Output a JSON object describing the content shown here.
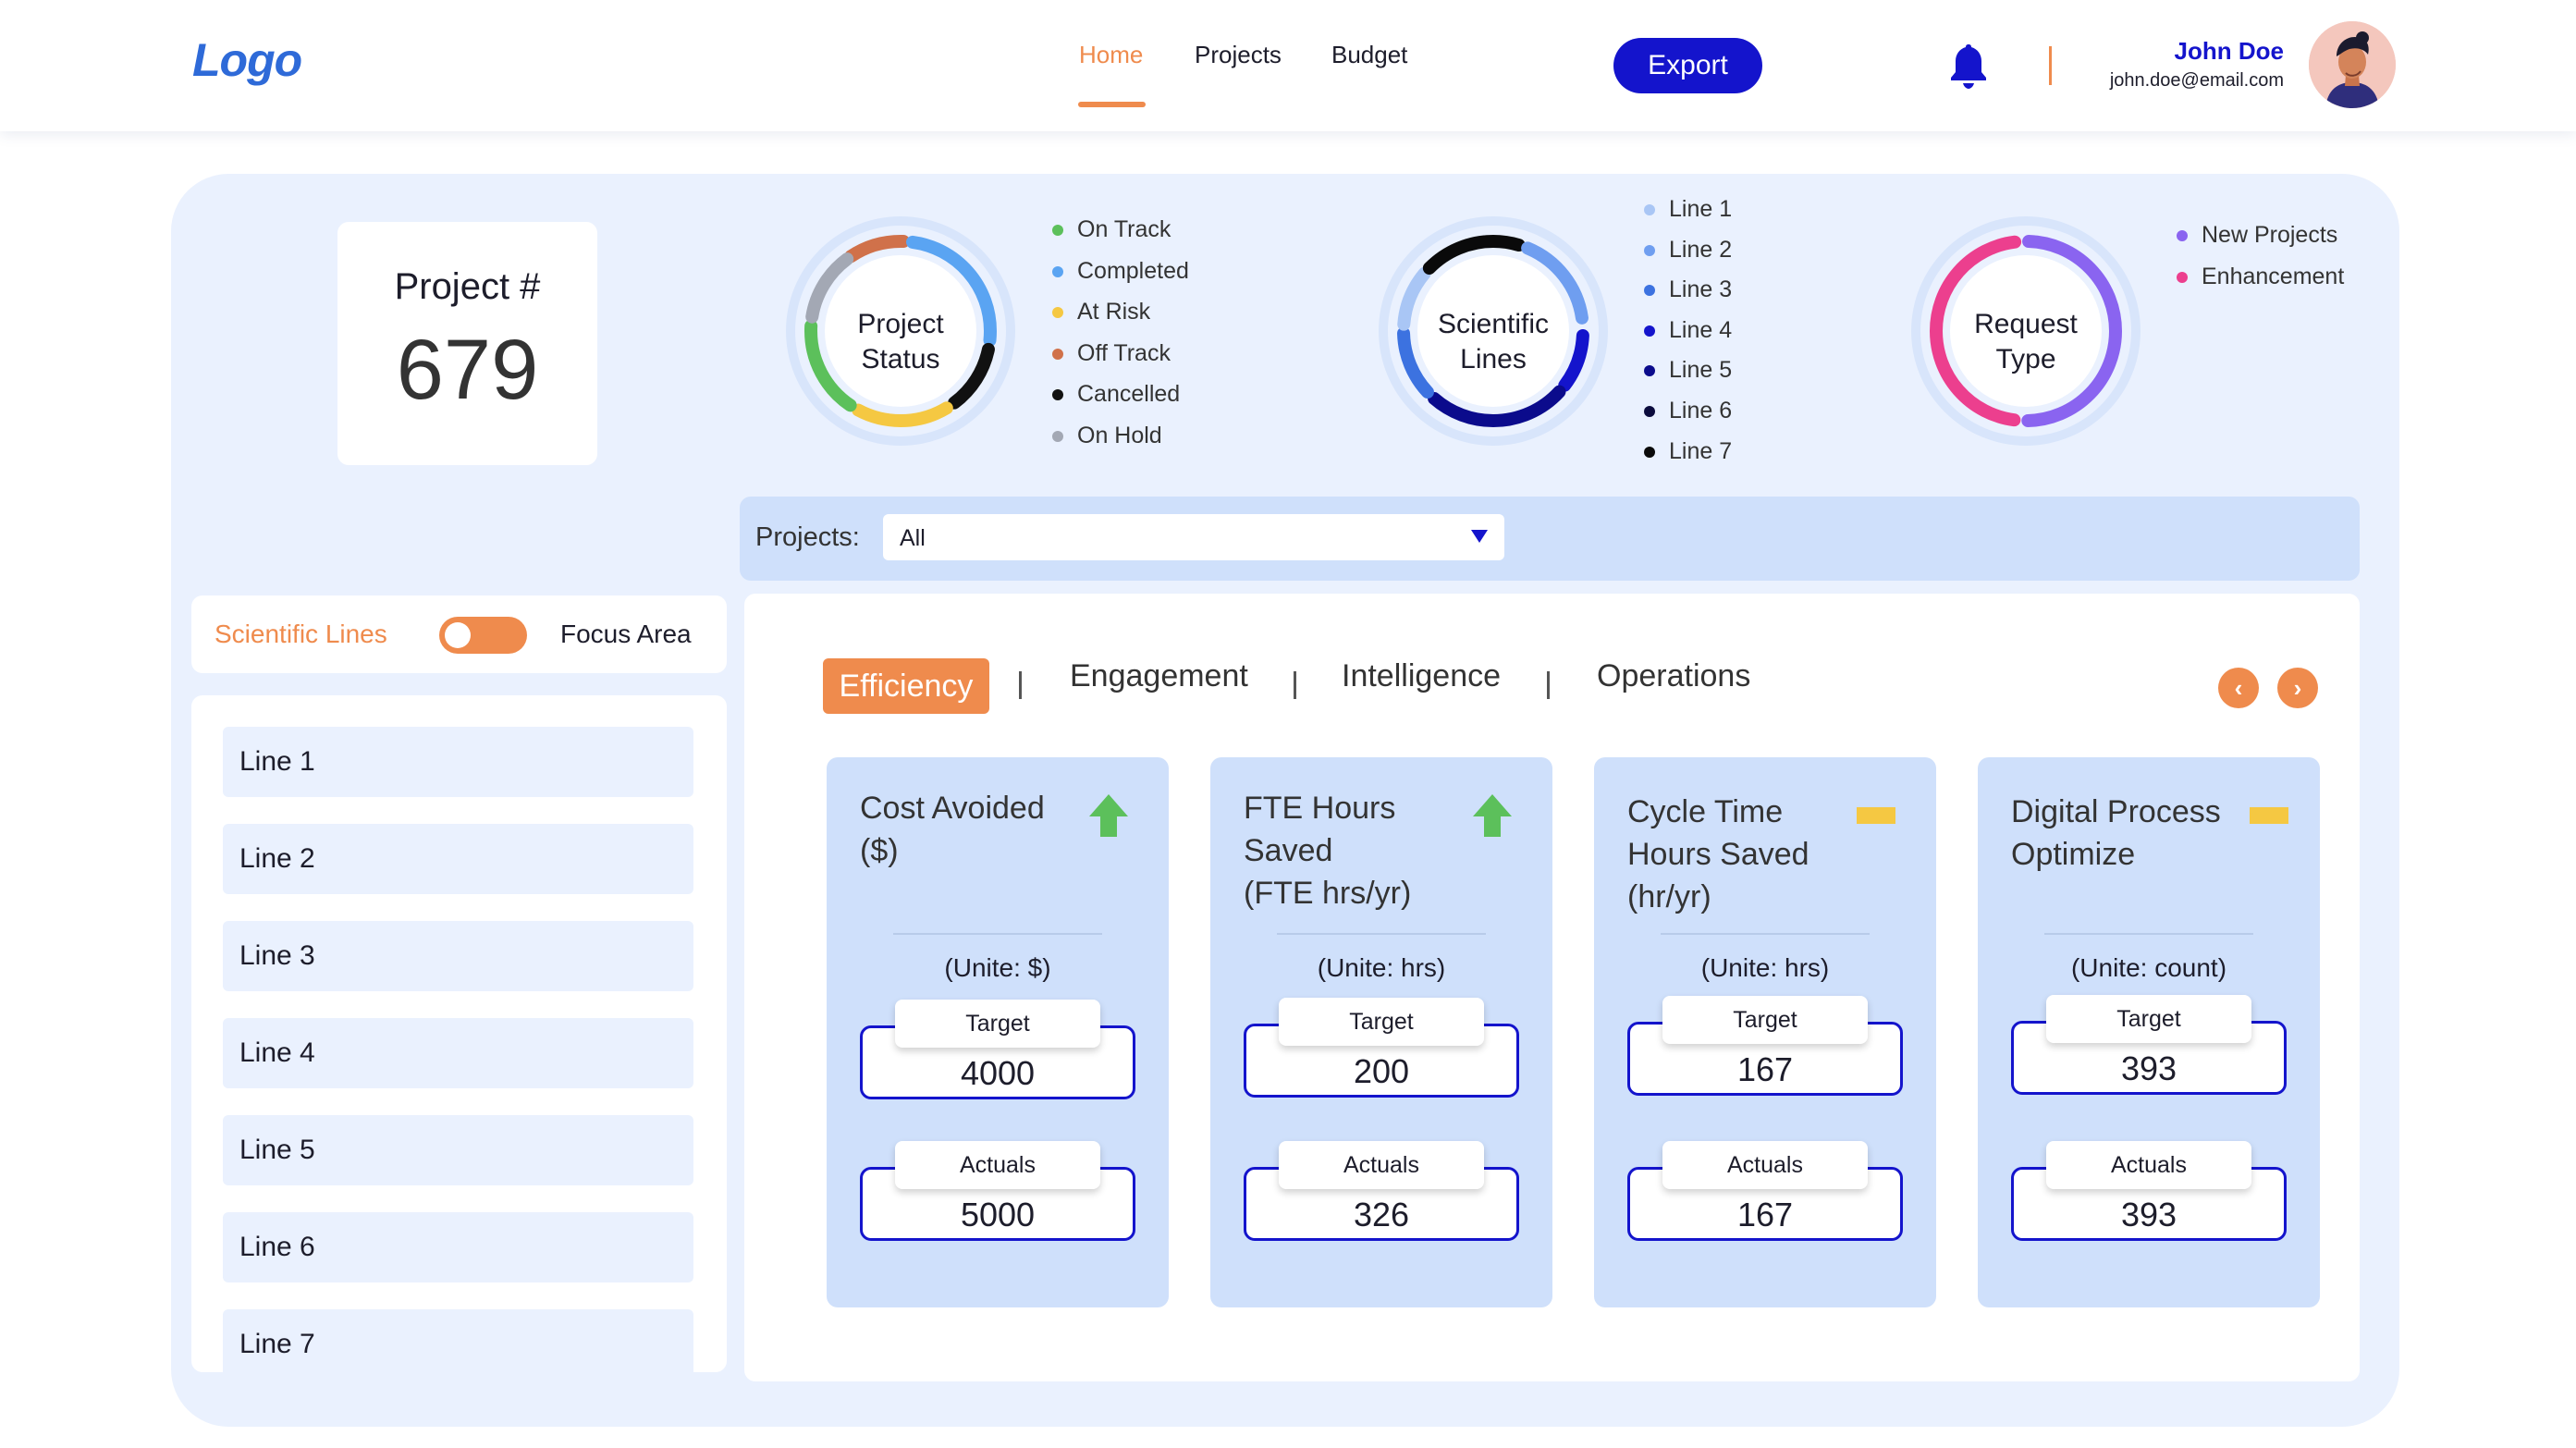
{
  "header": {
    "logo": "Logo",
    "nav": [
      "Home",
      "Projects",
      "Budget"
    ],
    "active_nav": "Home",
    "export_label": "Export",
    "user_name": "John Doe",
    "user_email": "john.doe@email.com"
  },
  "colors": {
    "accent": "#ef8b4d",
    "primary": "#1414cc",
    "panel_bg": "#eaf1fe",
    "card_bg": "#cfe0fb",
    "up_arrow": "#5cc05b",
    "neutral_indicator": "#f5c842"
  },
  "project": {
    "label": "Project #",
    "number": "679"
  },
  "donuts": {
    "project_status": {
      "label_line1": "Project",
      "label_line2": "Status",
      "legend": [
        {
          "label": "On Track",
          "color": "#5cc05b"
        },
        {
          "label": "Completed",
          "color": "#5aa4f2"
        },
        {
          "label": "At Risk",
          "color": "#f5c842"
        },
        {
          "label": "Off Track",
          "color": "#d0714a"
        },
        {
          "label": "Cancelled",
          "color": "#111111"
        },
        {
          "label": "On Hold",
          "color": "#a3a8b4"
        }
      ]
    },
    "scientific_lines": {
      "label_line1": "Scientific",
      "label_line2": "Lines",
      "legend": [
        {
          "label": "Line 1",
          "color": "#a9c6f5"
        },
        {
          "label": "Line 2",
          "color": "#6f9ef0"
        },
        {
          "label": "Line 3",
          "color": "#3c72e0"
        },
        {
          "label": "Line 4",
          "color": "#1414cc"
        },
        {
          "label": "Line 5",
          "color": "#0b0b8c"
        },
        {
          "label": "Line 6",
          "color": "#0b0b3d"
        },
        {
          "label": "Line 7",
          "color": "#0a0a0a"
        }
      ]
    },
    "request_type": {
      "label_line1": "Request",
      "label_line2": "Type",
      "legend": [
        {
          "label": "New Projects",
          "color": "#8a64f0"
        },
        {
          "label": "Enhancement",
          "color": "#ec3f8e"
        }
      ]
    }
  },
  "filter": {
    "label": "Projects:",
    "value": "All"
  },
  "toggle": {
    "left_label": "Scientific Lines",
    "right_label": "Focus Area"
  },
  "lines": [
    "Line 1",
    "Line 2",
    "Line 3",
    "Line 4",
    "Line 5",
    "Line 6",
    "Line 7"
  ],
  "tabs": [
    "Efficiency",
    "Engagement",
    "Intelligence",
    "Operations"
  ],
  "active_tab": "Efficiency",
  "nav_arrows": {
    "prev": "‹",
    "next": "›"
  },
  "metrics": [
    {
      "title_lines": [
        "Cost Avoided",
        "($)"
      ],
      "indicator": "up-arrow",
      "unit": "(Unite: $)",
      "target_label": "Target",
      "target": "4000",
      "actuals_label": "Actuals",
      "actuals": "5000"
    },
    {
      "title_lines": [
        "FTE Hours",
        "Saved",
        "(FTE hrs/yr)"
      ],
      "indicator": "up-arrow",
      "unit": "(Unite: hrs)",
      "target_label": "Target",
      "target": "200",
      "actuals_label": "Actuals",
      "actuals": "326"
    },
    {
      "title_lines": [
        "Cycle Time",
        "Hours Saved",
        "(hr/yr)"
      ],
      "indicator": "flat-bar",
      "unit": "(Unite: hrs)",
      "target_label": "Target",
      "target": "167",
      "actuals_label": "Actuals",
      "actuals": "167"
    },
    {
      "title_lines": [
        "Digital Process",
        "Optimize"
      ],
      "indicator": "flat-bar",
      "unit": "(Unite: count)",
      "target_label": "Target",
      "target": "393",
      "actuals_label": "Actuals",
      "actuals": "393"
    }
  ]
}
